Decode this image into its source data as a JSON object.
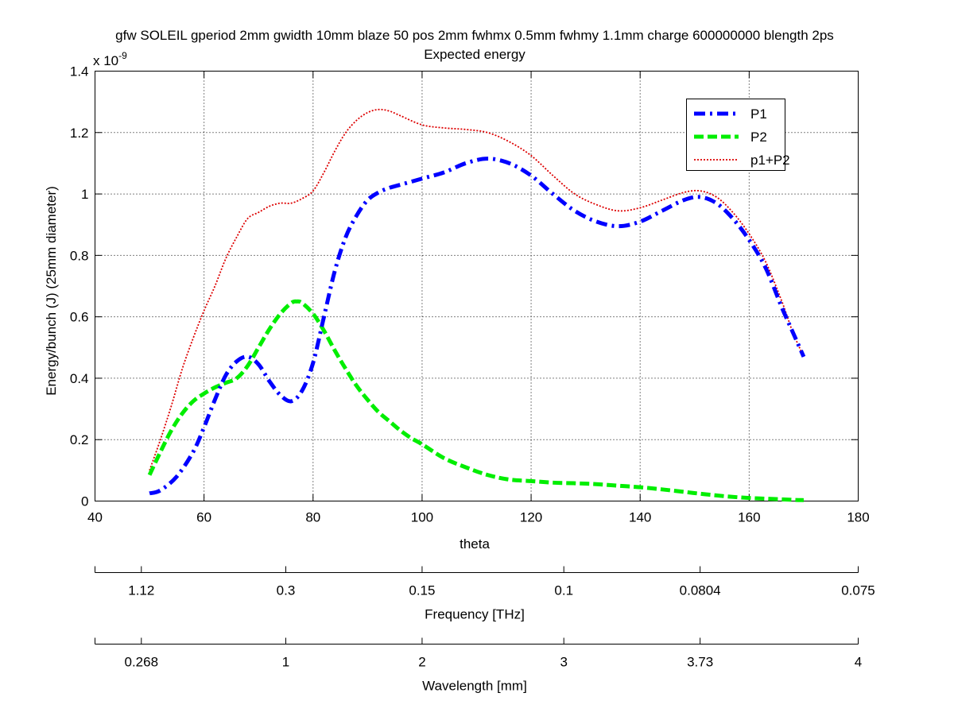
{
  "chart_data": {
    "type": "line",
    "title": "gfw SOLEIL gperiod 2mm gwidth 10mm blaze 50 pos 2mm fwhmx 0.5mm fwhmy 1.1mm charge 600000000 blength 2ps",
    "subtitle": "Expected energy",
    "xlabel": "theta",
    "ylabel": "Energy/bunch (J) (25mm diameter)",
    "y_exponent_label": "x 10",
    "y_exponent_power": "-9",
    "xlim": [
      40,
      180
    ],
    "ylim": [
      0,
      1.4
    ],
    "grid": true,
    "legend_position": "top-right",
    "x_ticks": [
      "40",
      "60",
      "80",
      "100",
      "120",
      "140",
      "160",
      "180"
    ],
    "y_ticks": [
      "0",
      "0.2",
      "0.4",
      "0.6",
      "0.8",
      "1",
      "1.2",
      "1.4"
    ],
    "series": [
      {
        "name": "P1",
        "color": "#0000ff",
        "style": "dash-dot",
        "x": [
          50,
          52,
          55,
          58,
          60,
          62,
          64,
          66,
          68,
          70,
          72,
          74,
          76,
          78,
          80,
          82,
          84,
          86,
          88,
          90,
          92,
          94,
          96,
          100,
          104,
          108,
          112,
          116,
          120,
          124,
          128,
          132,
          136,
          140,
          144,
          148,
          151,
          154,
          157,
          160,
          163,
          166,
          168,
          170
        ],
        "y": [
          0.025,
          0.035,
          0.08,
          0.16,
          0.24,
          0.33,
          0.41,
          0.455,
          0.47,
          0.445,
          0.39,
          0.345,
          0.325,
          0.36,
          0.45,
          0.6,
          0.75,
          0.86,
          0.93,
          0.98,
          1.005,
          1.02,
          1.03,
          1.05,
          1.07,
          1.1,
          1.115,
          1.1,
          1.06,
          1.0,
          0.945,
          0.91,
          0.895,
          0.91,
          0.945,
          0.98,
          0.99,
          0.97,
          0.92,
          0.85,
          0.76,
          0.63,
          0.55,
          0.47
        ]
      },
      {
        "name": "P2",
        "color": "#00ee00",
        "style": "dashed",
        "x": [
          50,
          52,
          54,
          56,
          58,
          60,
          62,
          64,
          66,
          68,
          70,
          72,
          74,
          76,
          77,
          78,
          80,
          82,
          84,
          86,
          88,
          90,
          92,
          94,
          96,
          98,
          100,
          104,
          108,
          112,
          116,
          120,
          124,
          128,
          132,
          136,
          140,
          144,
          148,
          152,
          156,
          160,
          164,
          168,
          170
        ],
        "y": [
          0.085,
          0.16,
          0.23,
          0.285,
          0.325,
          0.35,
          0.37,
          0.385,
          0.4,
          0.44,
          0.5,
          0.56,
          0.61,
          0.645,
          0.65,
          0.645,
          0.61,
          0.555,
          0.49,
          0.43,
          0.375,
          0.33,
          0.29,
          0.26,
          0.23,
          0.205,
          0.185,
          0.14,
          0.11,
          0.085,
          0.07,
          0.065,
          0.06,
          0.058,
          0.055,
          0.05,
          0.045,
          0.038,
          0.03,
          0.022,
          0.015,
          0.01,
          0.007,
          0.004,
          0.003
        ]
      },
      {
        "name": "p1+P2",
        "color": "#dd0000",
        "style": "dotted",
        "x": [
          50,
          52,
          54,
          56,
          58,
          60,
          62,
          64,
          66,
          68,
          70,
          72,
          74,
          76,
          78,
          80,
          82,
          84,
          86,
          88,
          90,
          92,
          94,
          96,
          100,
          104,
          108,
          112,
          116,
          120,
          124,
          128,
          132,
          136,
          140,
          144,
          148,
          151,
          154,
          157,
          160,
          163,
          166,
          168,
          170
        ],
        "y": [
          0.1,
          0.2,
          0.31,
          0.43,
          0.53,
          0.62,
          0.7,
          0.79,
          0.86,
          0.92,
          0.94,
          0.96,
          0.97,
          0.97,
          0.985,
          1.01,
          1.07,
          1.14,
          1.2,
          1.24,
          1.265,
          1.275,
          1.27,
          1.255,
          1.225,
          1.215,
          1.21,
          1.2,
          1.17,
          1.125,
          1.06,
          1.0,
          0.965,
          0.945,
          0.955,
          0.98,
          1.005,
          1.01,
          0.99,
          0.94,
          0.87,
          0.78,
          0.65,
          0.55,
          0.47
        ]
      }
    ],
    "extra_axes": [
      {
        "label": "Frequency [THz]",
        "ticks": [
          "1.12",
          "0.3",
          "0.15",
          "0.1",
          "0.0804",
          "0.075"
        ],
        "tick_theta": [
          48.5,
          75,
          100,
          126,
          151,
          180
        ]
      },
      {
        "label": "Wavelength [mm]",
        "ticks": [
          "0.268",
          "1",
          "2",
          "3",
          "3.73",
          "4"
        ],
        "tick_theta": [
          48.5,
          75,
          100,
          126,
          151,
          180
        ]
      }
    ]
  }
}
